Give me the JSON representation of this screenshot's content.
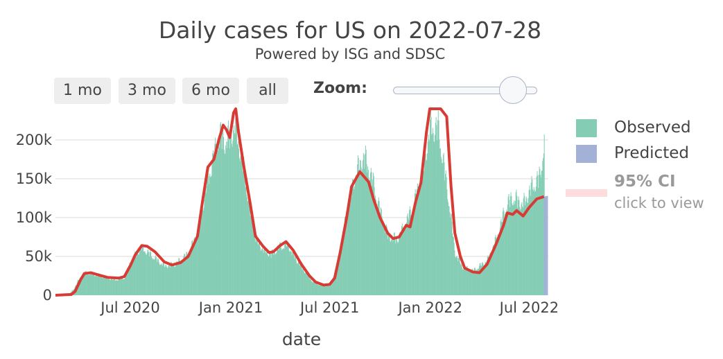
{
  "header": {
    "title": "Daily cases for US on 2022-07-28",
    "subtitle": "Powered by ISG and SDSC"
  },
  "controls": {
    "range_buttons": [
      "1 mo",
      "3 mo",
      "6 mo",
      "all"
    ],
    "zoom_label": "Zoom:",
    "zoom_level": 0.83
  },
  "legend": {
    "observed": "Observed",
    "predicted": "Predicted",
    "ci_label": "95% CI",
    "ci_hint": "click to view"
  },
  "colors": {
    "observed": "#84cdb4",
    "predicted": "#a3b1d6",
    "trend": "#d83a34",
    "ci": "#fcdcdc",
    "grid": "#e6e6e6"
  },
  "chart_data": {
    "type": "bar",
    "xlabel": "date",
    "ylabel": "",
    "ylim": [
      0,
      240000
    ],
    "x_range": [
      "2020-02-15",
      "2022-08-05"
    ],
    "x_ticks": [
      {
        "date": "2020-07-01",
        "label": "Jul 2020"
      },
      {
        "date": "2021-01-01",
        "label": "Jan 2021"
      },
      {
        "date": "2021-07-01",
        "label": "Jul 2021"
      },
      {
        "date": "2022-01-01",
        "label": "Jan 2022"
      },
      {
        "date": "2022-07-01",
        "label": "Jul 2022"
      }
    ],
    "y_ticks": [
      {
        "value": 0,
        "label": "0"
      },
      {
        "value": 50000,
        "label": "50k"
      },
      {
        "value": 100000,
        "label": "100k"
      },
      {
        "value": 150000,
        "label": "150k"
      },
      {
        "value": 200000,
        "label": "200k"
      }
    ],
    "series": [
      {
        "name": "Observed",
        "kind": "bar",
        "points": [
          [
            "2020-02-15",
            0
          ],
          [
            "2020-03-10",
            1000
          ],
          [
            "2020-03-20",
            10000
          ],
          [
            "2020-04-01",
            28000
          ],
          [
            "2020-04-10",
            32000
          ],
          [
            "2020-05-01",
            29000
          ],
          [
            "2020-06-01",
            22000
          ],
          [
            "2020-06-20",
            25000
          ],
          [
            "2020-07-01",
            48000
          ],
          [
            "2020-07-20",
            68000
          ],
          [
            "2020-08-01",
            62000
          ],
          [
            "2020-09-01",
            42000
          ],
          [
            "2020-09-20",
            44000
          ],
          [
            "2020-10-15",
            60000
          ],
          [
            "2020-11-01",
            90000
          ],
          [
            "2020-11-20",
            170000
          ],
          [
            "2020-12-01",
            200000
          ],
          [
            "2020-12-10",
            230000
          ],
          [
            "2020-12-20",
            220000
          ],
          [
            "2021-01-01",
            230000
          ],
          [
            "2021-01-08",
            240000
          ],
          [
            "2021-01-20",
            200000
          ],
          [
            "2021-02-01",
            140000
          ],
          [
            "2021-02-15",
            80000
          ],
          [
            "2021-03-01",
            65000
          ],
          [
            "2021-03-15",
            58000
          ],
          [
            "2021-04-01",
            70000
          ],
          [
            "2021-04-15",
            72000
          ],
          [
            "2021-05-01",
            50000
          ],
          [
            "2021-05-15",
            35000
          ],
          [
            "2021-06-01",
            18000
          ],
          [
            "2021-06-20",
            13000
          ],
          [
            "2021-07-01",
            15000
          ],
          [
            "2021-07-15",
            45000
          ],
          [
            "2021-08-01",
            120000
          ],
          [
            "2021-08-15",
            170000
          ],
          [
            "2021-09-01",
            200000
          ],
          [
            "2021-09-15",
            170000
          ],
          [
            "2021-10-01",
            120000
          ],
          [
            "2021-10-15",
            85000
          ],
          [
            "2021-11-01",
            80000
          ],
          [
            "2021-11-15",
            100000
          ],
          [
            "2021-12-01",
            130000
          ],
          [
            "2021-12-15",
            170000
          ],
          [
            "2022-01-01",
            240000
          ],
          [
            "2022-01-15",
            240000
          ],
          [
            "2022-02-01",
            150000
          ],
          [
            "2022-02-15",
            60000
          ],
          [
            "2022-03-01",
            40000
          ],
          [
            "2022-03-20",
            35000
          ],
          [
            "2022-04-15",
            50000
          ],
          [
            "2022-05-01",
            80000
          ],
          [
            "2022-05-20",
            130000
          ],
          [
            "2022-06-01",
            140000
          ],
          [
            "2022-06-20",
            130000
          ],
          [
            "2022-07-01",
            150000
          ],
          [
            "2022-07-20",
            170000
          ],
          [
            "2022-07-28",
            220000
          ]
        ]
      },
      {
        "name": "Predicted",
        "kind": "bar",
        "points": [
          [
            "2022-07-28",
            127000
          ],
          [
            "2022-08-03",
            128000
          ]
        ]
      },
      {
        "name": "",
        "kind": "line",
        "points": [
          [
            "2020-02-15",
            0
          ],
          [
            "2020-03-15",
            1000
          ],
          [
            "2020-03-22",
            5000
          ],
          [
            "2020-04-01",
            20000
          ],
          [
            "2020-04-08",
            28000
          ],
          [
            "2020-04-20",
            29000
          ],
          [
            "2020-05-05",
            26000
          ],
          [
            "2020-05-20",
            23000
          ],
          [
            "2020-06-10",
            22000
          ],
          [
            "2020-06-20",
            24000
          ],
          [
            "2020-07-01",
            38000
          ],
          [
            "2020-07-10",
            52000
          ],
          [
            "2020-07-22",
            64000
          ],
          [
            "2020-08-01",
            63000
          ],
          [
            "2020-08-15",
            56000
          ],
          [
            "2020-09-01",
            43000
          ],
          [
            "2020-09-15",
            39000
          ],
          [
            "2020-10-01",
            42000
          ],
          [
            "2020-10-15",
            50000
          ],
          [
            "2020-11-01",
            76000
          ],
          [
            "2020-11-10",
            120000
          ],
          [
            "2020-11-20",
            165000
          ],
          [
            "2020-12-01",
            175000
          ],
          [
            "2020-12-10",
            200000
          ],
          [
            "2020-12-18",
            219000
          ],
          [
            "2020-12-24",
            213000
          ],
          [
            "2020-12-30",
            203000
          ],
          [
            "2021-01-06",
            235000
          ],
          [
            "2021-01-10",
            240000
          ],
          [
            "2021-01-15",
            210000
          ],
          [
            "2021-01-25",
            165000
          ],
          [
            "2021-02-05",
            120000
          ],
          [
            "2021-02-15",
            76000
          ],
          [
            "2021-03-01",
            63000
          ],
          [
            "2021-03-12",
            55000
          ],
          [
            "2021-03-20",
            56000
          ],
          [
            "2021-04-01",
            64000
          ],
          [
            "2021-04-12",
            69000
          ],
          [
            "2021-04-25",
            58000
          ],
          [
            "2021-05-10",
            40000
          ],
          [
            "2021-05-25",
            25000
          ],
          [
            "2021-06-05",
            17000
          ],
          [
            "2021-06-20",
            13000
          ],
          [
            "2021-07-01",
            14000
          ],
          [
            "2021-07-10",
            22000
          ],
          [
            "2021-07-20",
            55000
          ],
          [
            "2021-08-01",
            100000
          ],
          [
            "2021-08-10",
            140000
          ],
          [
            "2021-08-25",
            159000
          ],
          [
            "2021-09-10",
            146000
          ],
          [
            "2021-09-20",
            122000
          ],
          [
            "2021-10-01",
            100000
          ],
          [
            "2021-10-15",
            80000
          ],
          [
            "2021-10-25",
            73000
          ],
          [
            "2021-11-05",
            75000
          ],
          [
            "2021-11-18",
            90000
          ],
          [
            "2021-11-25",
            88000
          ],
          [
            "2021-12-05",
            120000
          ],
          [
            "2021-12-15",
            145000
          ],
          [
            "2021-12-25",
            210000
          ],
          [
            "2021-12-31",
            240000
          ],
          [
            "2022-01-20",
            240000
          ],
          [
            "2022-01-31",
            230000
          ],
          [
            "2022-02-08",
            140000
          ],
          [
            "2022-02-15",
            80000
          ],
          [
            "2022-02-25",
            50000
          ],
          [
            "2022-03-05",
            35000
          ],
          [
            "2022-03-20",
            30000
          ],
          [
            "2022-04-01",
            29000
          ],
          [
            "2022-04-15",
            40000
          ],
          [
            "2022-05-01",
            65000
          ],
          [
            "2022-05-15",
            90000
          ],
          [
            "2022-05-22",
            106000
          ],
          [
            "2022-06-01",
            104000
          ],
          [
            "2022-06-08",
            109000
          ],
          [
            "2022-06-20",
            102000
          ],
          [
            "2022-07-01",
            113000
          ],
          [
            "2022-07-15",
            124000
          ],
          [
            "2022-07-28",
            127000
          ]
        ]
      }
    ]
  }
}
